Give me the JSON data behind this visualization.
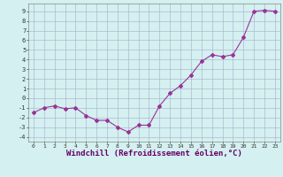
{
  "x": [
    0,
    1,
    2,
    3,
    4,
    5,
    6,
    7,
    8,
    9,
    10,
    11,
    12,
    13,
    14,
    15,
    16,
    17,
    18,
    19,
    20,
    21,
    22,
    23
  ],
  "y": [
    -1.5,
    -1.0,
    -0.8,
    -1.1,
    -1.0,
    -1.8,
    -2.3,
    -2.3,
    -3.0,
    -3.5,
    -2.8,
    -2.8,
    -0.8,
    0.5,
    1.3,
    2.4,
    3.8,
    4.5,
    4.3,
    4.5,
    6.3,
    9.0,
    9.1,
    9.0
  ],
  "line_color": "#993399",
  "marker": "D",
  "marker_size": 2,
  "bg_color": "#d4f0f0",
  "grid_color": "#aaaacc",
  "xlabel": "Windchill (Refroidissement éolien,°C)",
  "xlabel_fontsize": 6.5,
  "ylabel_ticks": [
    -4,
    -3,
    -2,
    -1,
    0,
    1,
    2,
    3,
    4,
    5,
    6,
    7,
    8,
    9
  ],
  "xticks": [
    0,
    1,
    2,
    3,
    4,
    5,
    6,
    7,
    8,
    9,
    10,
    11,
    12,
    13,
    14,
    15,
    16,
    17,
    18,
    19,
    20,
    21,
    22,
    23
  ],
  "xlim": [
    -0.5,
    23.5
  ],
  "ylim": [
    -4.5,
    9.8
  ]
}
